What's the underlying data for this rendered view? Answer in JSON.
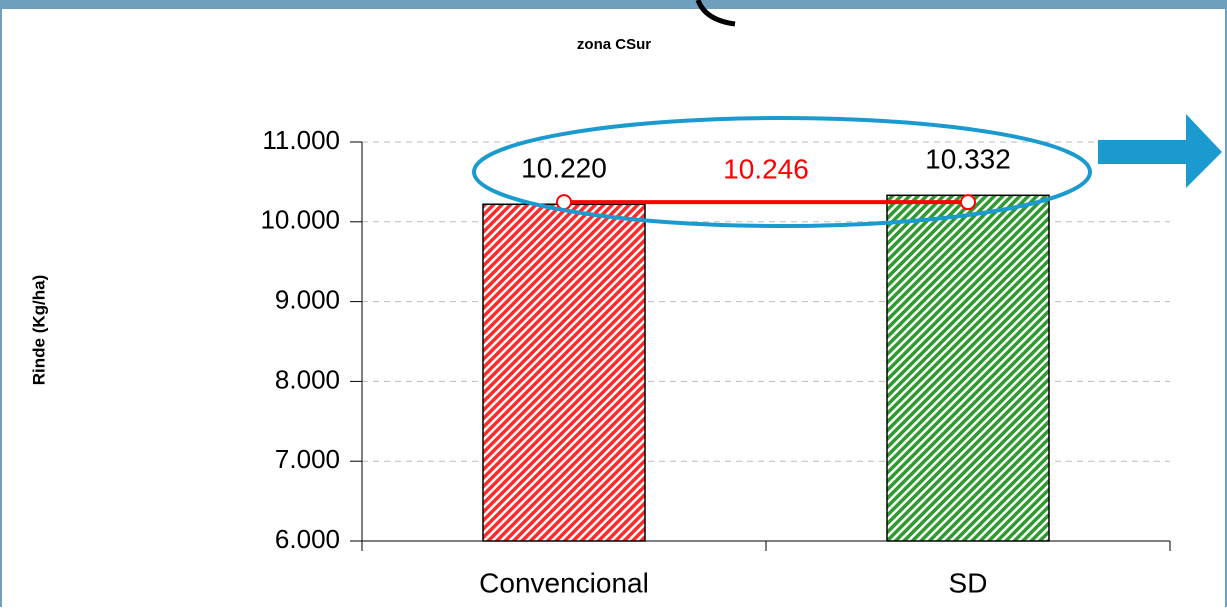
{
  "chart_data": {
    "type": "bar",
    "title": "zona CSur",
    "ylabel": "Rinde (Kg/ha)",
    "categories": [
      "Convencional",
      "SD"
    ],
    "values": [
      10220,
      10332
    ],
    "value_labels": [
      "10.220",
      "10.332"
    ],
    "colors": [
      "#ff2a2a",
      "#2f9a2f"
    ],
    "average_line": {
      "value": 10246,
      "label": "10.246",
      "color": "#ff0000"
    },
    "ylim": [
      6000,
      11000
    ],
    "yticks": [
      {
        "value": 6000,
        "label": "6.000"
      },
      {
        "value": 7000,
        "label": "7.000"
      },
      {
        "value": 8000,
        "label": "8.000"
      },
      {
        "value": 9000,
        "label": "9.000"
      },
      {
        "value": 10000,
        "label": "10.000"
      },
      {
        "value": 11000,
        "label": "11.000"
      }
    ],
    "grid": true
  }
}
